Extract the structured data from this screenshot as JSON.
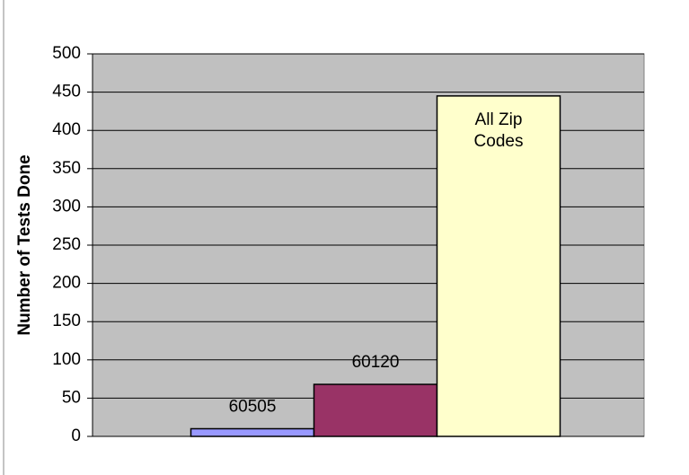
{
  "chart_data": {
    "type": "bar",
    "y_label": "Number of Tests Done",
    "categories": [
      "60505",
      "60120",
      "All Zip Codes"
    ],
    "values": [
      10,
      68,
      445
    ],
    "colors": [
      "#9999ff",
      "#993366",
      "#ffffcc"
    ],
    "ylim": [
      0,
      500
    ],
    "yticks": [
      0,
      50,
      100,
      150,
      200,
      250,
      300,
      350,
      400,
      450,
      500
    ],
    "grid": true
  }
}
